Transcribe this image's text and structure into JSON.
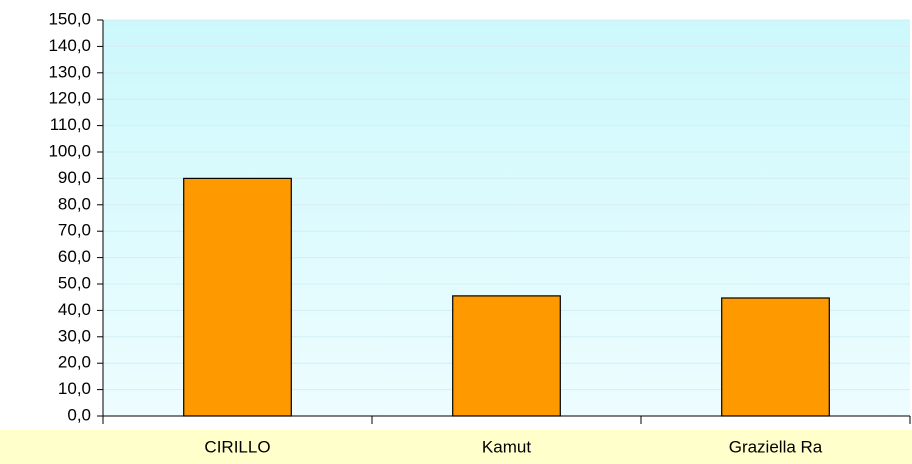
{
  "chart_data": {
    "type": "bar",
    "categories": [
      "CIRILLO",
      "Kamut",
      "Graziella Ra"
    ],
    "values": [
      90,
      45.5,
      44.7
    ],
    "color": "#ff9900",
    "ylim": [
      0,
      150
    ],
    "yticks": [
      {
        "value": 0,
        "label": "0,0"
      },
      {
        "value": 10,
        "label": "10,0"
      },
      {
        "value": 20,
        "label": "20,0"
      },
      {
        "value": 30,
        "label": "30,0"
      },
      {
        "value": 40,
        "label": "40,0"
      },
      {
        "value": 50,
        "label": "50,0"
      },
      {
        "value": 60,
        "label": "60,0"
      },
      {
        "value": 70,
        "label": "70,0"
      },
      {
        "value": 80,
        "label": "80,0"
      },
      {
        "value": 90,
        "label": "90,0"
      },
      {
        "value": 100,
        "label": "100,0"
      },
      {
        "value": 110,
        "label": "110,0"
      },
      {
        "value": 120,
        "label": "120,0"
      },
      {
        "value": 130,
        "label": "130,0"
      },
      {
        "value": 140,
        "label": "140,0"
      },
      {
        "value": 150,
        "label": "150,0"
      }
    ],
    "grid": true
  }
}
